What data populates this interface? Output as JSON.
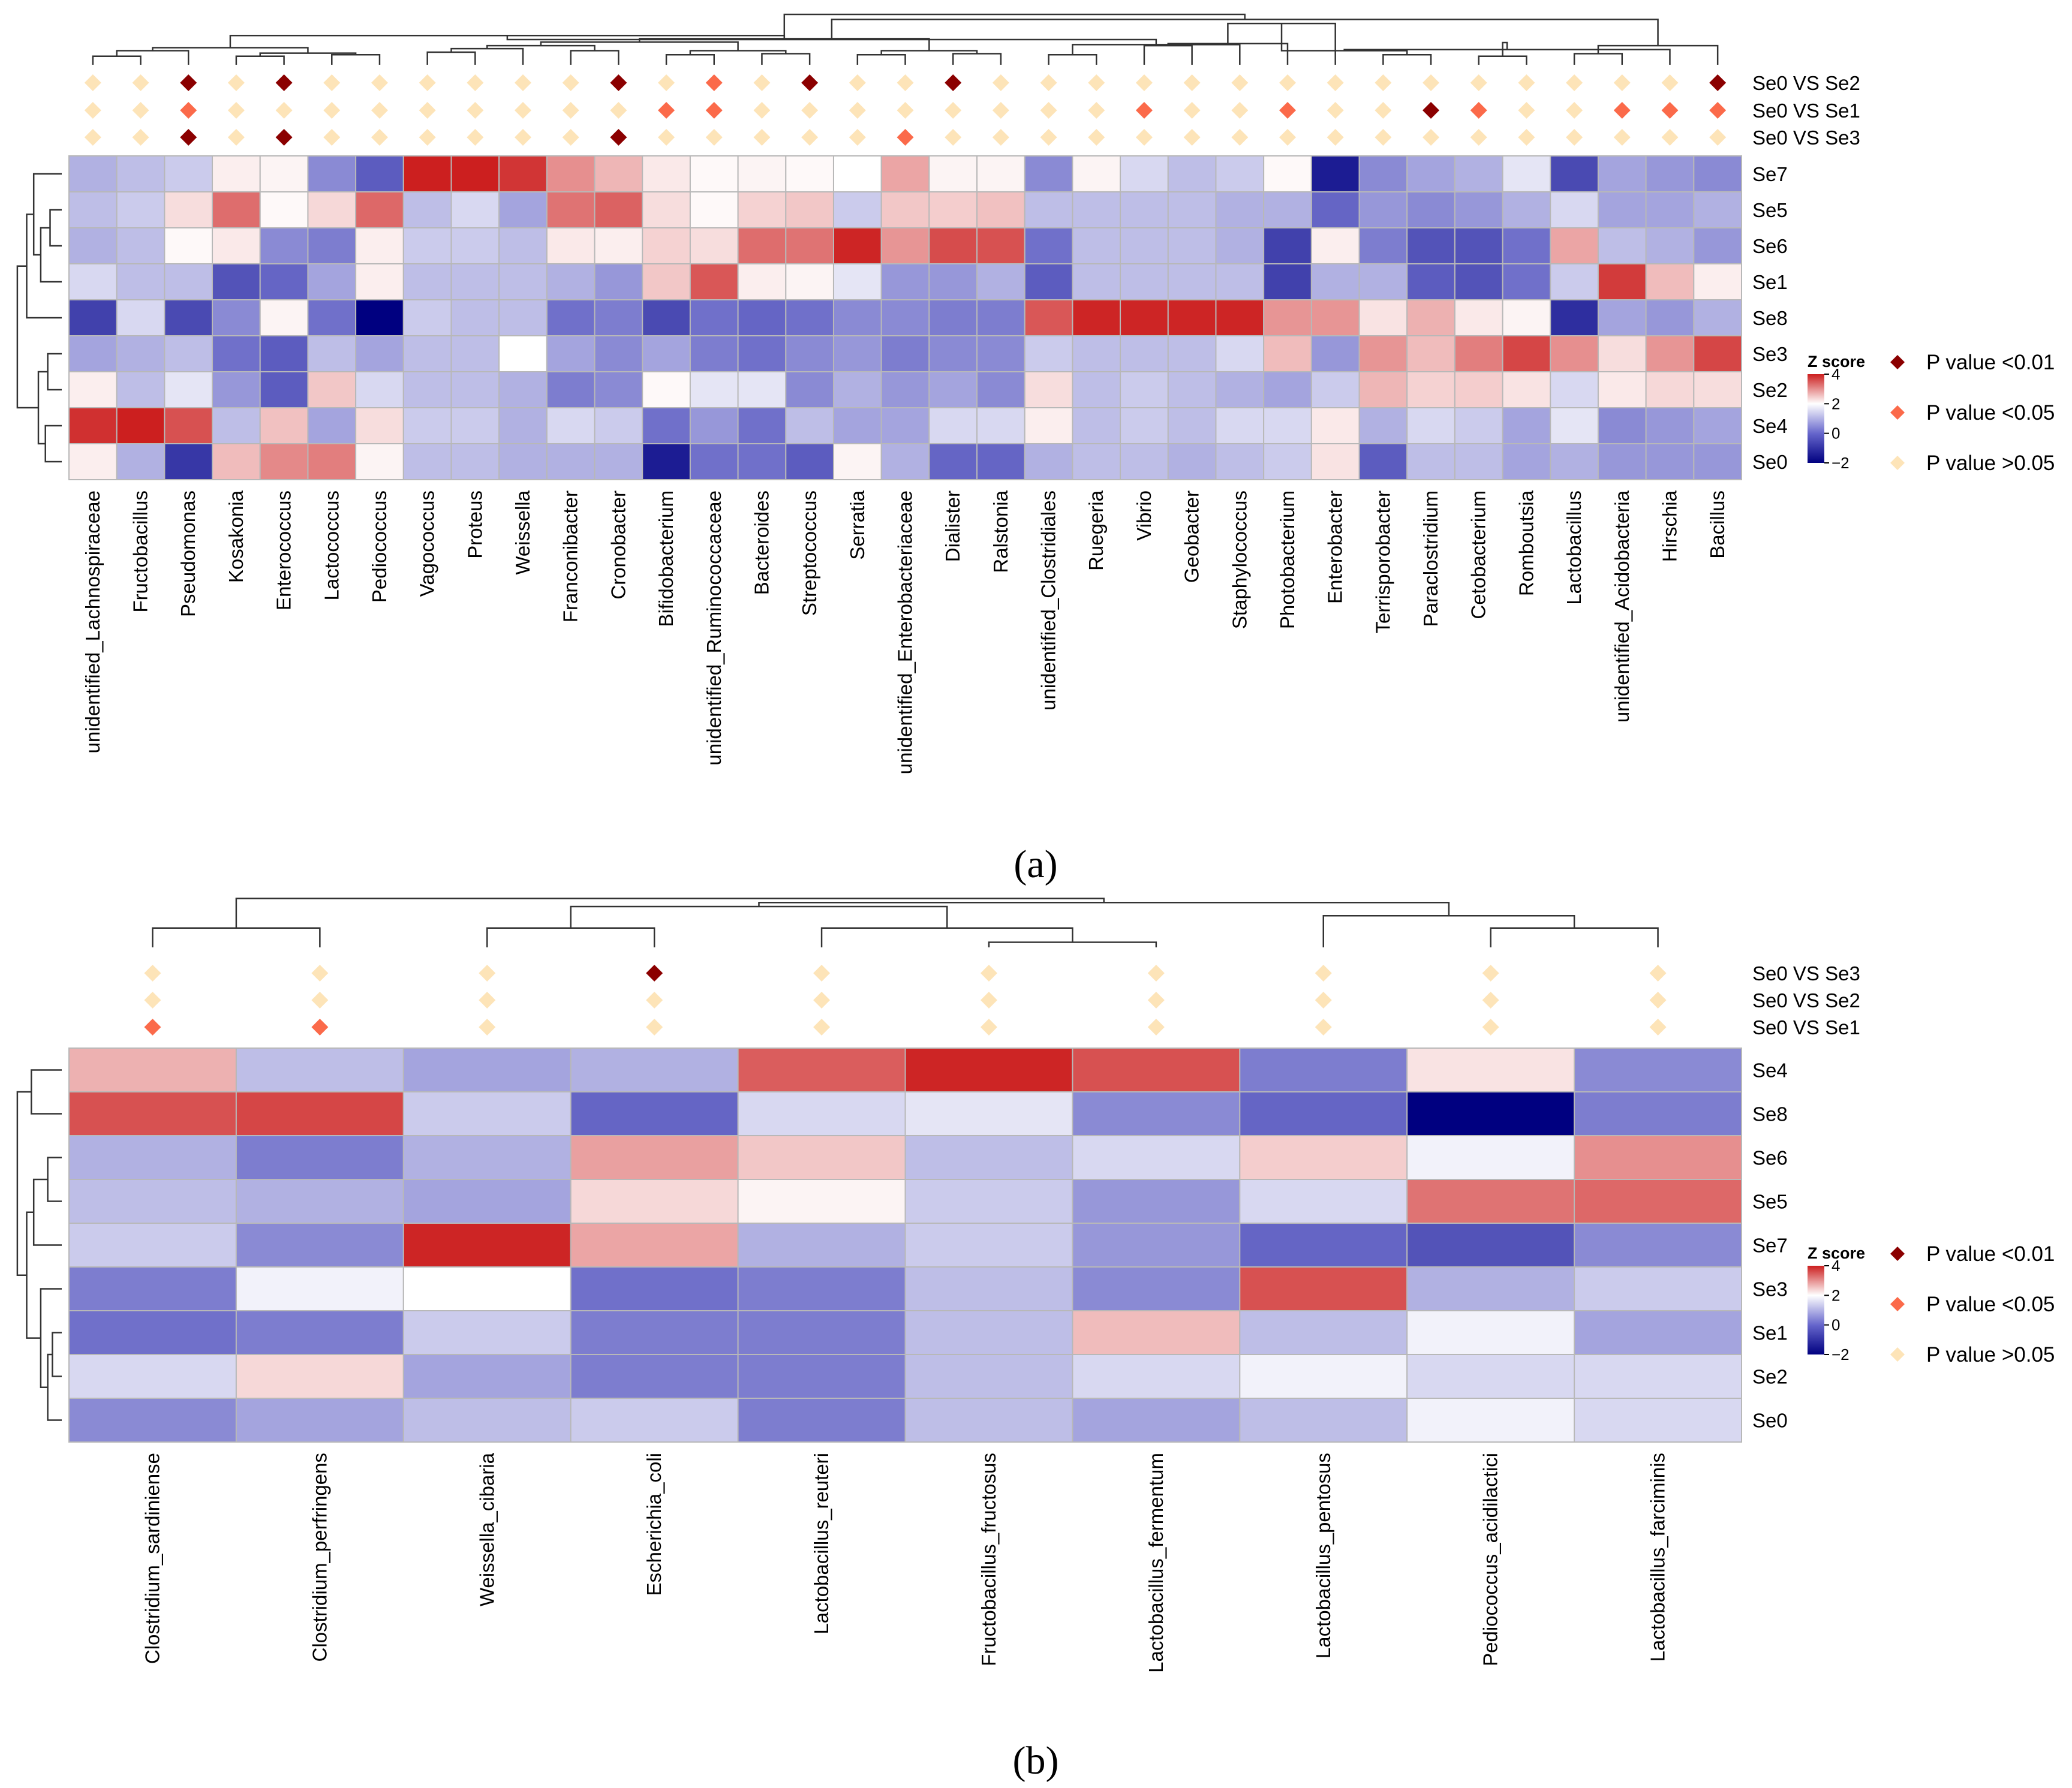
{
  "colors": {
    "low": "#000080",
    "mid": "#ffffff",
    "high": "#cc1f1f",
    "p001": "#8b0000",
    "p005": "#fb6a4a",
    "pns": "#fde4b8",
    "grid": "#b8b8b8"
  },
  "legend": {
    "items": [
      {
        "label": "P value <0.01",
        "level": "p001"
      },
      {
        "label": "P value <0.05",
        "level": "p005"
      },
      {
        "label": "P value >0.05",
        "level": "pns"
      }
    ]
  },
  "chart_data": [
    {
      "type": "heatmap",
      "panel": "(a)",
      "colorbar": {
        "title": "Z score",
        "ticks": [
          4,
          2,
          0,
          -2
        ],
        "range": [
          -2,
          4
        ]
      },
      "rows": [
        "Se7",
        "Se5",
        "Se6",
        "Se1",
        "Se8",
        "Se3",
        "Se2",
        "Se4",
        "Se0"
      ],
      "columns": [
        "unidentified_Lachnospiraceae",
        "Fructobacillus",
        "Pseudomonas",
        "Kosakonia",
        "Enterococcus",
        "Lactococcus",
        "Pediococcus",
        "Vagococcus",
        "Proteus",
        "Weissella",
        "Franconibacter",
        "Cronobacter",
        "Bifidobacterium",
        "unidentified_Ruminococcaceae",
        "Bacteroides",
        "Streptococcus",
        "Serratia",
        "unidentified_Enterobacteriaceae",
        "Dialister",
        "Ralstonia",
        "unidentified_Clostridiales",
        "Ruegeria",
        "Vibrio",
        "Geobacter",
        "Staphylococcus",
        "Photobacterium",
        "Enterobacter",
        "Terrisporobacter",
        "Paraclostridium",
        "Cetobacterium",
        "Romboutsia",
        "Lactobacillus",
        "unidentified_Acidobacteria",
        "Hirschia",
        "Bacillus"
      ],
      "values": [
        [
          -0.6,
          -0.5,
          -0.4,
          0.3,
          0.2,
          -0.9,
          -1.3,
          4.0,
          4.0,
          3.6,
          2.0,
          1.3,
          0.4,
          0.1,
          0.2,
          0.1,
          0.0,
          1.6,
          0.2,
          0.2,
          -0.9,
          0.2,
          -0.3,
          -0.5,
          -0.4,
          0.1,
          -2.0,
          -0.9,
          -0.7,
          -0.6,
          -0.2,
          -1.5,
          -0.7,
          -0.8,
          -0.9
        ],
        [
          -0.5,
          -0.4,
          0.6,
          2.6,
          0.1,
          0.7,
          2.7,
          -0.5,
          -0.3,
          -0.7,
          2.5,
          2.8,
          0.6,
          0.1,
          0.8,
          1.0,
          -0.4,
          1.0,
          0.9,
          1.1,
          -0.5,
          -0.5,
          -0.5,
          -0.5,
          -0.6,
          -0.6,
          -1.2,
          -0.8,
          -0.9,
          -0.8,
          -0.6,
          -0.3,
          -0.7,
          -0.7,
          -0.6
        ],
        [
          -0.6,
          -0.5,
          0.1,
          0.4,
          -0.9,
          -1.0,
          0.3,
          -0.4,
          -0.4,
          -0.5,
          0.4,
          0.3,
          0.8,
          0.6,
          2.6,
          2.5,
          3.9,
          1.9,
          3.2,
          3.1,
          -1.1,
          -0.5,
          -0.5,
          -0.5,
          -0.6,
          -1.6,
          0.3,
          -1.0,
          -1.4,
          -1.4,
          -1.1,
          1.6,
          -0.5,
          -0.6,
          -0.8
        ],
        [
          -0.3,
          -0.5,
          -0.5,
          -1.4,
          -1.2,
          -0.7,
          0.3,
          -0.5,
          -0.5,
          -0.5,
          -0.6,
          -0.8,
          1.0,
          3.0,
          0.3,
          0.2,
          -0.2,
          -0.8,
          -0.8,
          -0.6,
          -1.3,
          -0.5,
          -0.5,
          -0.5,
          -0.5,
          -1.6,
          -0.6,
          -0.6,
          -1.3,
          -1.4,
          -1.1,
          -0.4,
          3.5,
          1.2,
          0.3
        ],
        [
          -1.6,
          -0.3,
          -1.5,
          -0.9,
          0.2,
          -1.1,
          -2.3,
          -0.4,
          -0.5,
          -0.5,
          -1.1,
          -1.0,
          -1.5,
          -1.1,
          -1.2,
          -1.1,
          -0.9,
          -0.9,
          -1.0,
          -1.0,
          3.0,
          3.9,
          3.9,
          3.9,
          3.9,
          1.9,
          1.9,
          0.5,
          1.4,
          0.4,
          0.2,
          -1.8,
          -0.7,
          -0.8,
          -0.6
        ],
        [
          -0.7,
          -0.6,
          -0.5,
          -1.1,
          -1.3,
          -0.5,
          -0.7,
          -0.5,
          -0.5,
          0.0,
          -0.7,
          -0.9,
          -0.7,
          -1.0,
          -1.1,
          -0.9,
          -0.8,
          -1.0,
          -0.9,
          -0.9,
          -0.4,
          -0.5,
          -0.5,
          -0.5,
          -0.3,
          1.2,
          -0.8,
          1.9,
          1.2,
          2.3,
          3.3,
          2.0,
          0.6,
          1.9,
          3.3
        ],
        [
          0.3,
          -0.5,
          -0.2,
          -0.8,
          -1.3,
          1.0,
          -0.3,
          -0.5,
          -0.5,
          -0.6,
          -1.0,
          -0.9,
          0.1,
          -0.2,
          -0.2,
          -0.9,
          -0.6,
          -0.8,
          -0.7,
          -0.9,
          0.6,
          -0.5,
          -0.4,
          -0.5,
          -0.6,
          -0.7,
          -0.4,
          1.3,
          0.8,
          0.9,
          0.5,
          -0.3,
          0.4,
          0.7,
          0.6
        ],
        [
          3.7,
          4.0,
          3.1,
          -0.5,
          1.1,
          -0.7,
          0.6,
          -0.4,
          -0.4,
          -0.6,
          -0.3,
          -0.4,
          -1.1,
          -0.8,
          -1.1,
          -0.5,
          -0.7,
          -0.7,
          -0.3,
          -0.3,
          0.3,
          -0.5,
          -0.4,
          -0.5,
          -0.3,
          -0.3,
          0.4,
          -0.6,
          -0.3,
          -0.4,
          -0.7,
          -0.2,
          -0.9,
          -0.8,
          -0.7
        ],
        [
          0.3,
          -0.6,
          -1.7,
          1.2,
          2.1,
          2.3,
          0.2,
          -0.5,
          -0.5,
          -0.6,
          -0.6,
          -0.6,
          -2.0,
          -1.1,
          -1.1,
          -1.3,
          0.2,
          -0.6,
          -1.2,
          -1.2,
          -0.6,
          -0.5,
          -0.5,
          -0.6,
          -0.5,
          -0.4,
          0.5,
          -1.3,
          -0.5,
          -0.5,
          -0.7,
          -0.6,
          -0.8,
          -0.8,
          -0.8
        ]
      ],
      "comparisons": [
        "Se0 VS Se2",
        "Se0 VS Se1",
        "Se0 VS Se3"
      ],
      "significance": [
        [
          "pns",
          "pns",
          "p001",
          "pns",
          "p001",
          "pns",
          "pns",
          "pns",
          "pns",
          "pns",
          "pns",
          "p001",
          "pns",
          "p005",
          "pns",
          "p001",
          "pns",
          "pns",
          "p001",
          "pns",
          "pns",
          "pns",
          "pns",
          "pns",
          "pns",
          "pns",
          "pns",
          "pns",
          "pns",
          "pns",
          "pns",
          "pns",
          "pns",
          "pns",
          "p001"
        ],
        [
          "pns",
          "pns",
          "p005",
          "pns",
          "pns",
          "pns",
          "pns",
          "pns",
          "pns",
          "pns",
          "pns",
          "pns",
          "p005",
          "p005",
          "pns",
          "pns",
          "pns",
          "pns",
          "pns",
          "pns",
          "pns",
          "pns",
          "p005",
          "pns",
          "pns",
          "p005",
          "pns",
          "pns",
          "p001",
          "p005",
          "pns",
          "pns",
          "p005",
          "p005",
          "p005"
        ],
        [
          "pns",
          "pns",
          "p001",
          "pns",
          "p001",
          "pns",
          "pns",
          "pns",
          "pns",
          "pns",
          "pns",
          "p001",
          "pns",
          "pns",
          "pns",
          "pns",
          "pns",
          "p005",
          "pns",
          "pns",
          "pns",
          "pns",
          "pns",
          "pns",
          "pns",
          "pns",
          "pns",
          "pns",
          "pns",
          "pns",
          "pns",
          "pns",
          "pns",
          "pns",
          "pns"
        ]
      ]
    },
    {
      "type": "heatmap",
      "panel": "(b)",
      "colorbar": {
        "title": "Z score",
        "ticks": [
          4,
          2,
          0,
          -2
        ],
        "range": [
          -2,
          4
        ]
      },
      "rows": [
        "Se4",
        "Se8",
        "Se6",
        "Se5",
        "Se7",
        "Se3",
        "Se1",
        "Se2",
        "Se0"
      ],
      "columns": [
        "Clostridium_sardiniense",
        "Clostridium_perfringens",
        "Weissella_cibaria",
        "Escherichia_coli",
        "Lactobacillus_reuteri",
        "Fructobacillus_fructosus",
        "Lactobacillus_fermentum",
        "Lactobacillus_pentosus",
        "Pediococcus_acidilactici",
        "Lactobacillus_farciminis"
      ],
      "values": [
        [
          1.4,
          -0.5,
          -0.7,
          -0.6,
          2.9,
          3.9,
          3.1,
          -1.0,
          0.5,
          -0.9
        ],
        [
          3.1,
          3.3,
          -0.4,
          -1.2,
          -0.3,
          -0.2,
          -0.9,
          -1.2,
          -2.3,
          -1.0
        ],
        [
          -0.6,
          -1.0,
          -0.6,
          1.7,
          1.0,
          -0.5,
          -0.3,
          0.9,
          -0.1,
          2.0
        ],
        [
          -0.5,
          -0.6,
          -0.7,
          0.7,
          0.2,
          -0.4,
          -0.8,
          -0.3,
          2.5,
          2.7
        ],
        [
          -0.4,
          -0.9,
          3.9,
          1.6,
          -0.6,
          -0.4,
          -0.8,
          -1.2,
          -1.4,
          -0.9
        ],
        [
          -1.0,
          -0.1,
          0.0,
          -1.1,
          -1.0,
          -0.5,
          -0.9,
          3.1,
          -0.6,
          -0.4
        ],
        [
          -1.1,
          -1.0,
          -0.4,
          -1.0,
          -1.0,
          -0.5,
          1.2,
          -0.5,
          -0.1,
          -0.7
        ],
        [
          -0.3,
          0.7,
          -0.7,
          -1.0,
          -1.0,
          -0.5,
          -0.3,
          -0.1,
          -0.3,
          -0.3
        ],
        [
          -0.9,
          -0.7,
          -0.5,
          -0.4,
          -1.0,
          -0.5,
          -0.7,
          -0.5,
          -0.1,
          -0.3
        ]
      ],
      "comparisons": [
        "Se0 VS Se3",
        "Se0 VS Se2",
        "Se0 VS Se1"
      ],
      "significance": [
        [
          "pns",
          "pns",
          "pns",
          "p001",
          "pns",
          "pns",
          "pns",
          "pns",
          "pns",
          "pns"
        ],
        [
          "pns",
          "pns",
          "pns",
          "pns",
          "pns",
          "pns",
          "pns",
          "pns",
          "pns",
          "pns"
        ],
        [
          "p005",
          "p005",
          "pns",
          "pns",
          "pns",
          "pns",
          "pns",
          "pns",
          "pns",
          "pns"
        ]
      ]
    }
  ]
}
